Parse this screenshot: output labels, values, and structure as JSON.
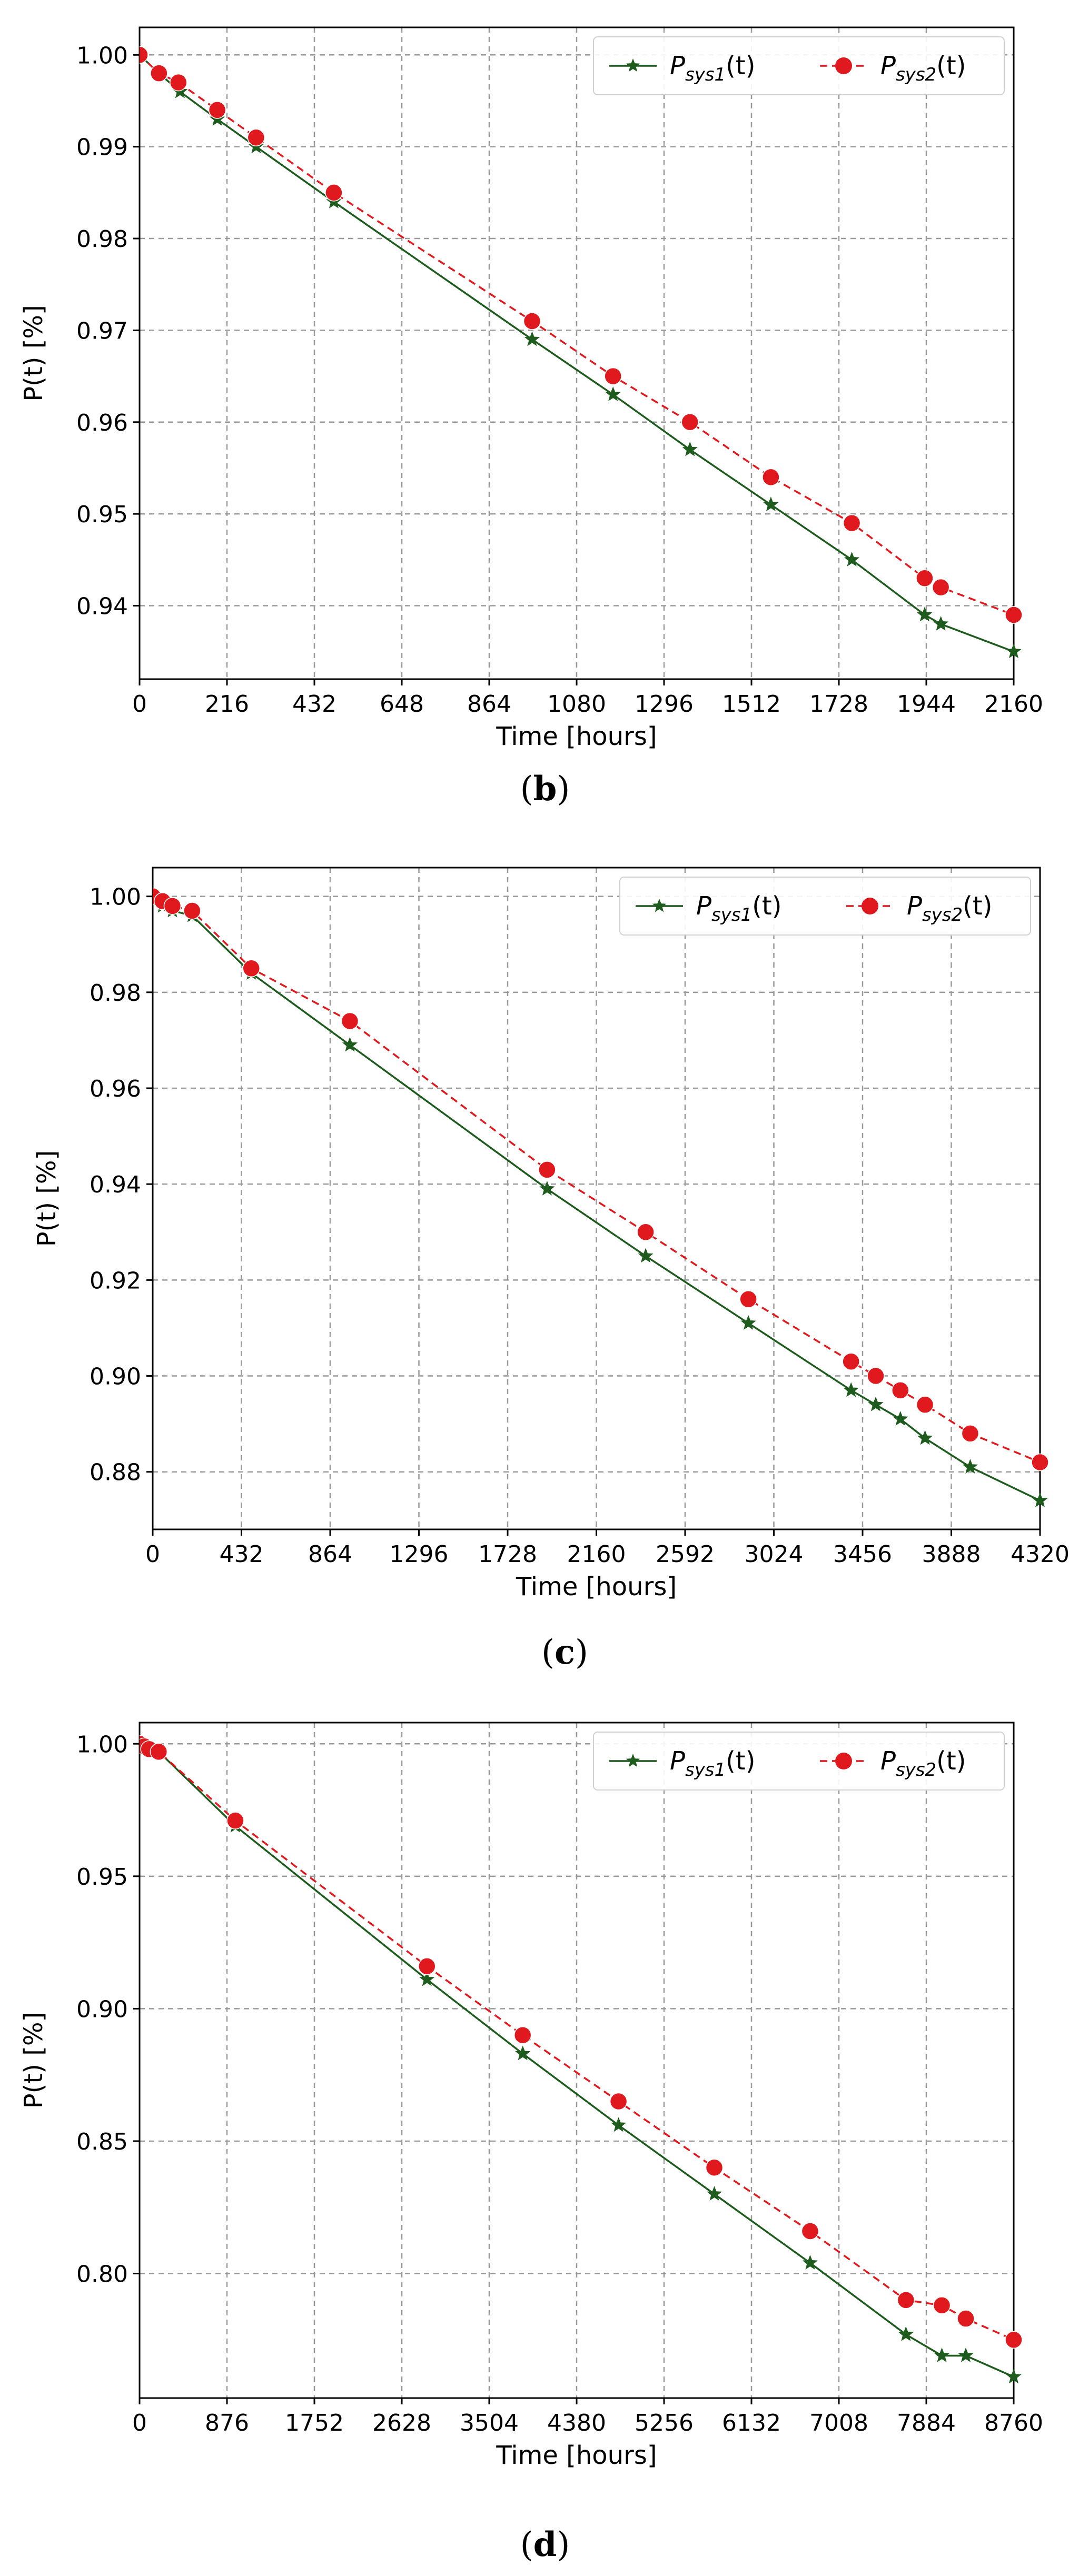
{
  "figure": {
    "series_colors": {
      "sys1": "#1e5c1e",
      "sys2": "#e0191e"
    },
    "grid_color": "#9a9a9a"
  },
  "chart_data": [
    {
      "panel": "(b)",
      "panel_open": "(",
      "panel_letter": "b",
      "panel_close": ")",
      "type": "line",
      "xlabel": "Time [hours]",
      "ylabel": "P(t) [%]",
      "xlim": [
        0,
        2160
      ],
      "ylim": [
        0.932,
        1.003
      ],
      "xticks": [
        0,
        216,
        432,
        648,
        864,
        1080,
        1296,
        1512,
        1728,
        1944,
        2160
      ],
      "yticks": [
        0.94,
        0.95,
        0.96,
        0.97,
        0.98,
        0.99,
        1.0
      ],
      "ytick_labels": [
        "0.94",
        "0.95",
        "0.96",
        "0.97",
        "0.98",
        "0.99",
        "1.00"
      ],
      "grid": true,
      "legend_position": "top-right",
      "series": [
        {
          "name_main": "P",
          "name_sub": "sys1",
          "name_tail": "(t)",
          "key": "sys1",
          "marker": "star",
          "linestyle": "solid",
          "x": [
            0,
            48,
            100,
            192,
            288,
            480,
            970,
            1170,
            1360,
            1560,
            1760,
            1940,
            1980,
            2160
          ],
          "y": [
            1.0,
            0.998,
            0.996,
            0.993,
            0.99,
            0.984,
            0.969,
            0.963,
            0.957,
            0.951,
            0.945,
            0.939,
            0.938,
            0.935
          ]
        },
        {
          "name_main": "P",
          "name_sub": "sys2",
          "name_tail": "(t)",
          "key": "sys2",
          "marker": "circle",
          "linestyle": "dashed",
          "x": [
            0,
            48,
            96,
            192,
            288,
            480,
            970,
            1170,
            1360,
            1560,
            1760,
            1940,
            1980,
            2160
          ],
          "y": [
            1.0,
            0.998,
            0.997,
            0.994,
            0.991,
            0.985,
            0.971,
            0.965,
            0.96,
            0.954,
            0.949,
            0.943,
            0.942,
            0.939
          ]
        }
      ]
    },
    {
      "panel": "(c)",
      "panel_open": "(",
      "panel_letter": "c",
      "panel_close": ")",
      "type": "line",
      "xlabel": "Time [hours]",
      "ylabel": "P(t) [%]",
      "xlim": [
        0,
        4320
      ],
      "ylim": [
        0.868,
        1.006
      ],
      "xticks": [
        0,
        432,
        864,
        1296,
        1728,
        2160,
        2592,
        3024,
        3456,
        3888,
        4320
      ],
      "yticks": [
        0.88,
        0.9,
        0.92,
        0.94,
        0.96,
        0.98,
        1.0
      ],
      "ytick_labels": [
        "0.88",
        "0.90",
        "0.92",
        "0.94",
        "0.96",
        "0.98",
        "1.00"
      ],
      "grid": true,
      "legend_position": "top-right",
      "series": [
        {
          "name_main": "P",
          "name_sub": "sys1",
          "name_tail": "(t)",
          "key": "sys1",
          "marker": "star",
          "linestyle": "solid",
          "x": [
            0,
            48,
            96,
            192,
            480,
            960,
            1920,
            2400,
            2900,
            3400,
            3520,
            3640,
            3760,
            3980,
            4320
          ],
          "y": [
            1.0,
            0.998,
            0.997,
            0.996,
            0.984,
            0.969,
            0.939,
            0.925,
            0.911,
            0.897,
            0.894,
            0.891,
            0.887,
            0.881,
            0.874
          ]
        },
        {
          "name_main": "P",
          "name_sub": "sys2",
          "name_tail": "(t)",
          "key": "sys2",
          "marker": "circle",
          "linestyle": "dashed",
          "x": [
            0,
            48,
            96,
            192,
            480,
            960,
            1920,
            2400,
            2900,
            3400,
            3520,
            3640,
            3760,
            3980,
            4320
          ],
          "y": [
            1.0,
            0.999,
            0.998,
            0.997,
            0.985,
            0.974,
            0.943,
            0.93,
            0.916,
            0.903,
            0.9,
            0.897,
            0.894,
            0.888,
            0.882
          ]
        }
      ]
    },
    {
      "panel": "(d)",
      "panel_open": "(",
      "panel_letter": "d",
      "panel_close": ")",
      "type": "line",
      "xlabel": "Time [hours]",
      "ylabel": "P(t) [%]",
      "xlim": [
        0,
        8760
      ],
      "ylim": [
        0.753,
        1.008
      ],
      "xticks": [
        0,
        876,
        1752,
        2628,
        3504,
        4380,
        5256,
        6132,
        7008,
        7884,
        8760
      ],
      "yticks": [
        0.8,
        0.85,
        0.9,
        0.95,
        1.0
      ],
      "ytick_labels": [
        "0.80",
        "0.85",
        "0.90",
        "0.95",
        "1.00"
      ],
      "grid": true,
      "legend_position": "top-right",
      "series": [
        {
          "name_main": "P",
          "name_sub": "sys1",
          "name_tail": "(t)",
          "key": "sys1",
          "marker": "star",
          "linestyle": "solid",
          "x": [
            0,
            48,
            96,
            192,
            960,
            2880,
            3840,
            4800,
            5760,
            6720,
            7680,
            8040,
            8280,
            8760
          ],
          "y": [
            1.0,
            0.999,
            0.998,
            0.997,
            0.969,
            0.911,
            0.883,
            0.856,
            0.83,
            0.804,
            0.777,
            0.769,
            0.769,
            0.761
          ]
        },
        {
          "name_main": "P",
          "name_sub": "sys2",
          "name_tail": "(t)",
          "key": "sys2",
          "marker": "circle",
          "linestyle": "dashed",
          "x": [
            0,
            48,
            96,
            192,
            960,
            2880,
            3840,
            4800,
            5760,
            6720,
            7680,
            8040,
            8280,
            8760
          ],
          "y": [
            1.0,
            0.999,
            0.998,
            0.997,
            0.971,
            0.916,
            0.89,
            0.865,
            0.84,
            0.816,
            0.79,
            0.788,
            0.783,
            0.775
          ]
        }
      ]
    }
  ]
}
